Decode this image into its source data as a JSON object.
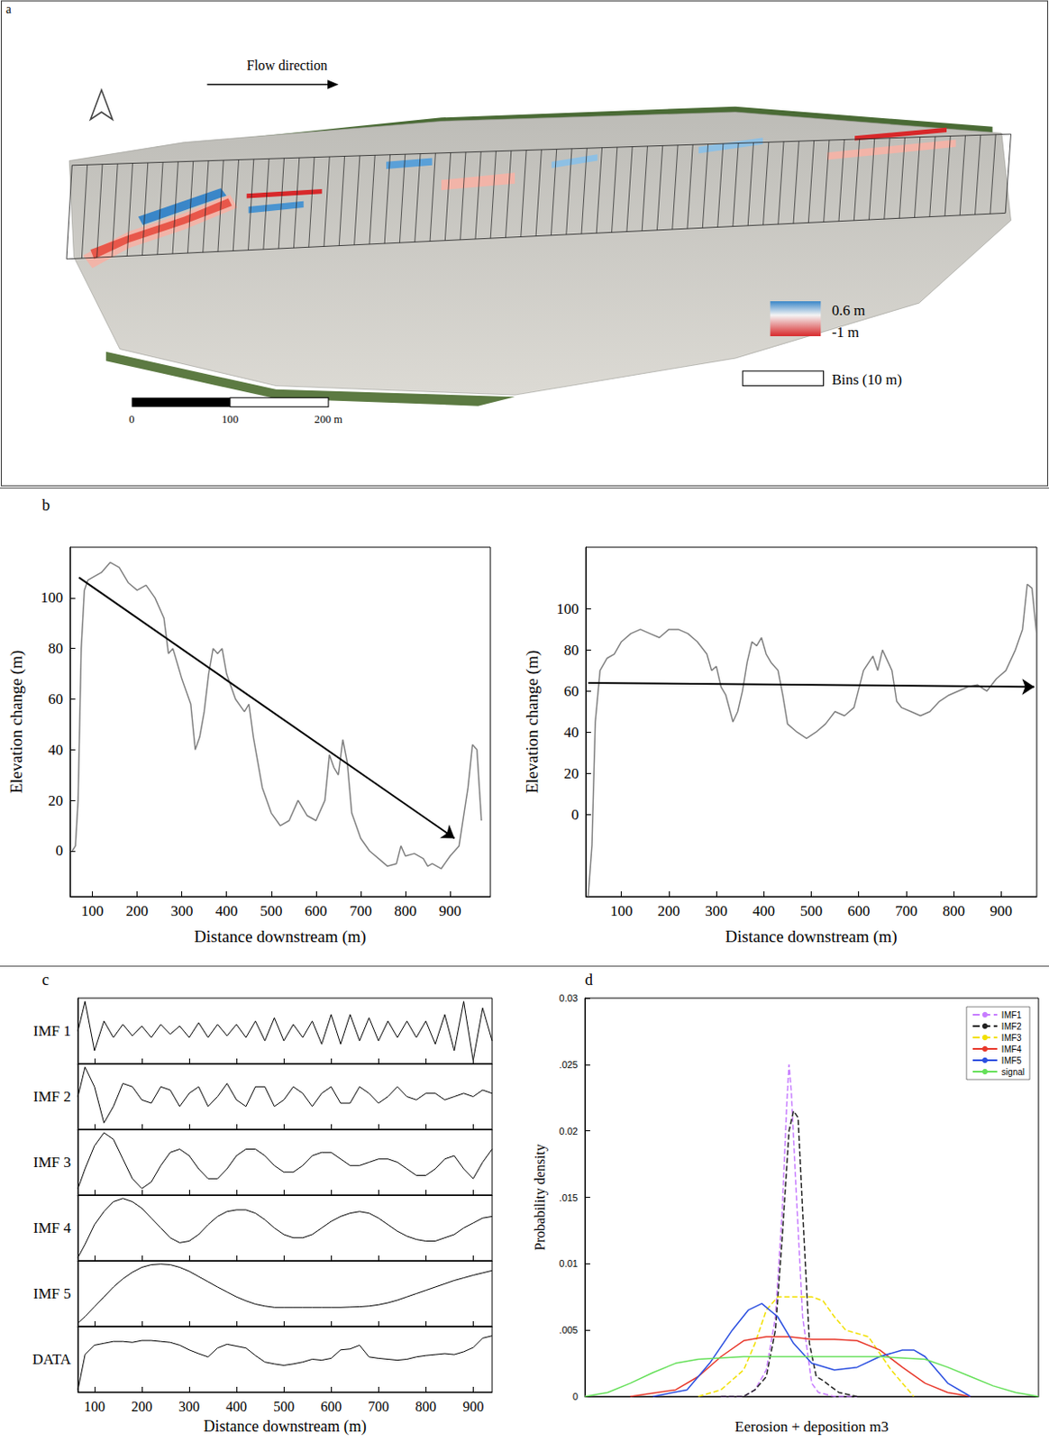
{
  "map": {
    "letter": "a",
    "flow_label": "Flow direction",
    "color_max_label": "0.6 m",
    "color_min_label": "-1 m",
    "bins_label": "Bins (10 m)",
    "scale_labels": [
      "0",
      "100",
      "200 m"
    ]
  },
  "chart_data": [
    {
      "letter": "b",
      "type": "line",
      "xlabel": "Distance downstream (m)",
      "ylabel": "Elevation change (m)",
      "color": "#808080",
      "grid": false,
      "xlim": [
        50,
        990
      ],
      "xticks": [
        100,
        200,
        300,
        400,
        500,
        600,
        700,
        800,
        900
      ],
      "ylim": [
        -18,
        120
      ],
      "yticks": [
        0,
        20,
        40,
        60,
        80,
        100
      ],
      "x": [
        55,
        62,
        68,
        75,
        82,
        90,
        100,
        120,
        140,
        160,
        180,
        200,
        220,
        240,
        260,
        270,
        280,
        300,
        320,
        330,
        340,
        350,
        360,
        370,
        380,
        390,
        400,
        420,
        440,
        450,
        460,
        480,
        500,
        520,
        540,
        560,
        580,
        600,
        620,
        630,
        640,
        650,
        660,
        670,
        680,
        700,
        720,
        740,
        760,
        780,
        790,
        800,
        820,
        840,
        850,
        860,
        880,
        900,
        920,
        940,
        950,
        960,
        970
      ],
      "values": [
        0,
        2,
        20,
        80,
        103,
        107,
        108,
        110,
        114,
        112,
        106,
        103,
        105,
        100,
        92,
        78,
        80,
        68,
        58,
        40,
        45,
        55,
        70,
        80,
        78,
        80,
        70,
        60,
        55,
        58,
        45,
        25,
        15,
        10,
        12,
        20,
        14,
        12,
        20,
        38,
        33,
        30,
        44,
        35,
        15,
        5,
        0,
        -3,
        -6,
        -5,
        2,
        -2,
        -1,
        -3,
        -6,
        -5,
        -7,
        -2,
        2,
        25,
        42,
        40,
        12
      ],
      "trend_arrow": {
        "from": [
          70,
          108
        ],
        "to": [
          910,
          5
        ]
      }
    },
    {
      "type": "line",
      "xlabel": "Distance downstream (m)",
      "ylabel": "Elevation change (m)",
      "color": "#808080",
      "grid": false,
      "xlim": [
        25,
        975
      ],
      "xticks": [
        100,
        200,
        300,
        400,
        500,
        600,
        700,
        800,
        900
      ],
      "ylim": [
        -40,
        130
      ],
      "yticks": [
        0,
        20,
        40,
        60,
        80,
        100
      ],
      "x": [
        30,
        38,
        45,
        55,
        70,
        85,
        100,
        120,
        140,
        160,
        180,
        200,
        220,
        240,
        260,
        280,
        290,
        300,
        310,
        320,
        335,
        345,
        355,
        365,
        375,
        385,
        395,
        405,
        415,
        430,
        440,
        450,
        470,
        490,
        510,
        530,
        550,
        570,
        590,
        610,
        630,
        640,
        650,
        670,
        680,
        690,
        710,
        730,
        750,
        770,
        790,
        810,
        830,
        850,
        870,
        890,
        910,
        930,
        945,
        955,
        965,
        975
      ],
      "values": [
        -40,
        -15,
        45,
        70,
        76,
        78,
        84,
        88,
        90,
        88,
        86,
        90,
        90,
        88,
        84,
        78,
        70,
        72,
        62,
        58,
        45,
        50,
        60,
        74,
        84,
        82,
        86,
        78,
        74,
        70,
        58,
        44,
        40,
        37,
        40,
        44,
        50,
        48,
        52,
        70,
        77,
        70,
        80,
        70,
        55,
        52,
        50,
        48,
        50,
        55,
        58,
        60,
        62,
        63,
        60,
        66,
        70,
        80,
        90,
        112,
        110,
        87
      ],
      "trend_arrow": {
        "from": [
          30,
          64
        ],
        "to": [
          970,
          62
        ]
      }
    },
    {
      "letter": "c",
      "type": "line",
      "xlabel": "Distance downstream (m)",
      "color": "#000000",
      "grid": false,
      "tick_labels": "x",
      "xlim": [
        65,
        940
      ],
      "xticks": [
        100,
        200,
        300,
        400,
        500,
        600,
        700,
        800,
        900
      ],
      "x": [
        65,
        80,
        100,
        120,
        140,
        160,
        180,
        200,
        220,
        240,
        260,
        280,
        300,
        320,
        340,
        360,
        380,
        400,
        420,
        440,
        460,
        480,
        500,
        520,
        540,
        560,
        580,
        600,
        620,
        640,
        660,
        680,
        700,
        720,
        740,
        760,
        780,
        800,
        820,
        840,
        860,
        880,
        900,
        920,
        940
      ],
      "series": [
        {
          "name": "IMF 1",
          "ylim": [
            -1,
            1
          ],
          "values": [
            0,
            0.9,
            -0.6,
            0.3,
            -0.2,
            0.2,
            -0.15,
            0.15,
            -0.2,
            0.2,
            -0.1,
            0.15,
            -0.2,
            0.25,
            -0.2,
            0.2,
            -0.15,
            0.2,
            -0.2,
            0.3,
            -0.3,
            0.4,
            -0.3,
            0.2,
            -0.2,
            0.3,
            -0.4,
            0.5,
            -0.4,
            0.5,
            -0.3,
            0.4,
            -0.3,
            0.3,
            -0.2,
            0.3,
            -0.2,
            0.3,
            -0.4,
            0.5,
            -0.6,
            0.9,
            -0.9,
            0.7,
            -0.3
          ]
        },
        {
          "name": "IMF 2",
          "ylim": [
            -1,
            1
          ],
          "values": [
            0,
            0.9,
            0.3,
            -0.8,
            -0.3,
            0.4,
            0.3,
            -0.1,
            -0.2,
            0.3,
            0.2,
            -0.3,
            0.1,
            0.3,
            -0.3,
            0.0,
            0.4,
            -0.1,
            -0.3,
            0.3,
            0.3,
            -0.3,
            -0.1,
            0.3,
            0.1,
            -0.3,
            0.1,
            0.3,
            -0.2,
            -0.2,
            0.3,
            0.1,
            -0.2,
            0.0,
            0.3,
            0.0,
            -0.1,
            0.1,
            0.1,
            -0.1,
            0.0,
            0.1,
            0.0,
            0.2,
            0.1
          ]
        },
        {
          "name": "IMF 3",
          "ylim": [
            -1,
            1
          ],
          "values": [
            -0.8,
            -0.2,
            0.5,
            0.9,
            0.7,
            0.1,
            -0.5,
            -0.8,
            -0.6,
            -0.1,
            0.3,
            0.4,
            0.2,
            -0.2,
            -0.5,
            -0.5,
            -0.2,
            0.2,
            0.4,
            0.4,
            0.2,
            -0.1,
            -0.3,
            -0.3,
            -0.1,
            0.2,
            0.3,
            0.3,
            0.1,
            -0.1,
            -0.1,
            0.0,
            0.1,
            0.1,
            0.0,
            -0.2,
            -0.4,
            -0.4,
            -0.2,
            0.1,
            0.2,
            -0.2,
            -0.5,
            0.0,
            0.4
          ]
        },
        {
          "name": "IMF 4",
          "ylim": [
            -1,
            1
          ],
          "values": [
            -0.9,
            -0.5,
            0.1,
            0.5,
            0.8,
            0.9,
            0.8,
            0.6,
            0.3,
            0.0,
            -0.3,
            -0.45,
            -0.4,
            -0.2,
            0.1,
            0.35,
            0.5,
            0.55,
            0.55,
            0.45,
            0.25,
            0.0,
            -0.2,
            -0.3,
            -0.3,
            -0.2,
            0.0,
            0.2,
            0.35,
            0.45,
            0.5,
            0.45,
            0.3,
            0.1,
            -0.1,
            -0.25,
            -0.35,
            -0.4,
            -0.4,
            -0.3,
            -0.2,
            0.0,
            0.15,
            0.3,
            0.35
          ]
        },
        {
          "name": "IMF 5",
          "ylim": [
            -1,
            1
          ],
          "values": [
            -0.9,
            -0.7,
            -0.4,
            -0.1,
            0.2,
            0.45,
            0.65,
            0.8,
            0.88,
            0.9,
            0.88,
            0.8,
            0.68,
            0.52,
            0.36,
            0.2,
            0.05,
            -0.1,
            -0.22,
            -0.32,
            -0.38,
            -0.42,
            -0.42,
            -0.42,
            -0.42,
            -0.42,
            -0.42,
            -0.42,
            -0.42,
            -0.41,
            -0.4,
            -0.38,
            -0.34,
            -0.28,
            -0.2,
            -0.1,
            0.0,
            0.1,
            0.2,
            0.3,
            0.4,
            0.48,
            0.56,
            0.63,
            0.7
          ]
        },
        {
          "name": "DATA",
          "ylim": [
            -20,
            120
          ],
          "values": [
            -15,
            60,
            80,
            84,
            88,
            88,
            86,
            90,
            90,
            88,
            86,
            80,
            70,
            62,
            55,
            74,
            82,
            78,
            74,
            58,
            44,
            40,
            37,
            40,
            44,
            50,
            48,
            52,
            70,
            72,
            80,
            55,
            52,
            50,
            48,
            50,
            55,
            58,
            60,
            62,
            60,
            66,
            75,
            95,
            100
          ]
        }
      ]
    },
    {
      "letter": "d",
      "type": "line",
      "xlabel": "Eerosion + deposition m3",
      "ylabel": "Probability density",
      "grid": false,
      "tick_labels": "y",
      "legend": "upper right",
      "xlim": [
        -1,
        1
      ],
      "ylim": [
        0,
        0.03
      ],
      "yticks": [
        0,
        {
          "value": 0.005,
          "label": ".005"
        },
        0.01,
        {
          "value": 0.015,
          "label": ".015"
        },
        0.02,
        {
          "value": 0.025,
          "label": ".025"
        },
        0.03
      ],
      "series": [
        {
          "name": "IMF1",
          "color": "#c77dff",
          "line_style": "dashed",
          "x": [
            -0.4,
            -0.3,
            -0.25,
            -0.2,
            -0.16,
            -0.13,
            -0.11,
            -0.1,
            -0.09,
            -0.07,
            -0.04,
            0.0,
            0.03,
            0.1,
            0.2
          ],
          "values": [
            0,
            0,
            0.0005,
            0.002,
            0.006,
            0.014,
            0.022,
            0.025,
            0.023,
            0.016,
            0.006,
            0.001,
            0.0003,
            0,
            0
          ]
        },
        {
          "name": "IMF2",
          "color": "#222222",
          "line_style": "dashed",
          "x": [
            -0.4,
            -0.3,
            -0.25,
            -0.2,
            -0.16,
            -0.13,
            -0.1,
            -0.08,
            -0.06,
            -0.04,
            -0.01,
            0.02,
            0.05,
            0.08,
            0.12,
            0.2
          ],
          "values": [
            0,
            0,
            0.0005,
            0.0015,
            0.005,
            0.012,
            0.02,
            0.0215,
            0.021,
            0.014,
            0.004,
            0.0015,
            0.0012,
            0.0008,
            0.0003,
            0
          ]
        },
        {
          "name": "IMF3",
          "color": "#f2e000",
          "line_style": "dashed",
          "x": [
            -0.5,
            -0.4,
            -0.3,
            -0.25,
            -0.2,
            -0.15,
            -0.1,
            0,
            0.05,
            0.1,
            0.15,
            0.25,
            0.35,
            0.45
          ],
          "values": [
            0,
            0.0005,
            0.002,
            0.004,
            0.0065,
            0.0075,
            0.0075,
            0.0075,
            0.0072,
            0.006,
            0.005,
            0.0045,
            0.002,
            0
          ]
        },
        {
          "name": "IMF4",
          "color": "#e8382b",
          "line_style": "solid",
          "x": [
            -0.8,
            -0.6,
            -0.5,
            -0.4,
            -0.3,
            -0.2,
            -0.1,
            0,
            0.1,
            0.2,
            0.3,
            0.4,
            0.5,
            0.6,
            0.7
          ],
          "values": [
            0,
            0.0005,
            0.0015,
            0.003,
            0.0042,
            0.0045,
            0.0045,
            0.0043,
            0.0043,
            0.0042,
            0.0035,
            0.0022,
            0.001,
            0.0003,
            0
          ]
        },
        {
          "name": "IMF5",
          "color": "#2b4fe0",
          "line_style": "solid",
          "x": [
            -0.7,
            -0.55,
            -0.45,
            -0.35,
            -0.28,
            -0.22,
            -0.15,
            -0.08,
            0,
            0.1,
            0.2,
            0.3,
            0.4,
            0.45,
            0.5,
            0.6,
            0.7
          ],
          "values": [
            0,
            0.0005,
            0.0025,
            0.005,
            0.0065,
            0.007,
            0.006,
            0.004,
            0.0025,
            0.002,
            0.0022,
            0.003,
            0.0035,
            0.0035,
            0.003,
            0.001,
            0
          ]
        },
        {
          "name": "signal",
          "color": "#66e05a",
          "line_style": "solid",
          "x": [
            -1,
            -0.9,
            -0.8,
            -0.7,
            -0.6,
            -0.5,
            -0.3,
            0,
            0.3,
            0.5,
            0.6,
            0.7,
            0.8,
            0.9,
            1
          ],
          "values": [
            0,
            0.0003,
            0.001,
            0.0018,
            0.0025,
            0.0028,
            0.003,
            0.003,
            0.003,
            0.0028,
            0.0022,
            0.0015,
            0.0008,
            0.0003,
            0
          ]
        }
      ]
    }
  ]
}
